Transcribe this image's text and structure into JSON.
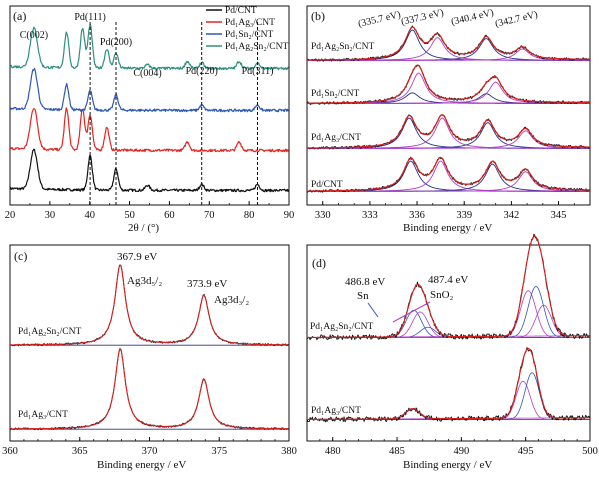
{
  "colors": {
    "black": "#111111",
    "red": "#e8231f",
    "blue": "#2c57b8",
    "teal": "#2c8f80",
    "magenta": "#b040c8",
    "navy": "#27318a",
    "fit_red": "#d8201c"
  },
  "panels": [
    {
      "label": "(a)",
      "xlabel": "2θ / (°)",
      "ylabel": "",
      "xlim": [
        20,
        90
      ],
      "xticks": [
        "20",
        "30",
        "40",
        "50",
        "60",
        "70",
        "80",
        "90"
      ],
      "legend": [
        "Pd/CNT",
        "Pd₁Ag₃/CNT",
        "Pd₁Sn₂/CNT",
        "Pd₁Ag₂Sn₂/CNT"
      ],
      "peaks": [
        {
          "name": "C(002)",
          "x": 26.0
        },
        {
          "name": "Pd(111)",
          "x": 40.1
        },
        {
          "name": "Pd(200)",
          "x": 46.6
        },
        {
          "name": "C(004)",
          "x": 54.5
        },
        {
          "name": "Pd(220)",
          "x": 68.1
        },
        {
          "name": "Pd(311)",
          "x": 82.1
        }
      ]
    },
    {
      "label": "(b)",
      "xlabel": "Binding energy / eV",
      "ylabel": "",
      "xlim": [
        329,
        347
      ],
      "xticks": [
        "330",
        "333",
        "336",
        "339",
        "342",
        "345"
      ],
      "energies": [
        "(335.7 eV)",
        "(337.3 eV)",
        "(340.4 eV)",
        "(342.7 eV)"
      ],
      "samples": [
        "Pd₁Ag₂Sn₂/CNT",
        "Pd₁Sn₂/CNT",
        "Pd₁Ag₃/CNT",
        "Pd/CNT"
      ]
    },
    {
      "label": "(c)",
      "xlabel": "Binding energy / eV",
      "ylabel": "",
      "xlim": [
        360,
        380
      ],
      "xticks": [
        "360",
        "365",
        "370",
        "375",
        "380"
      ],
      "peaks": [
        {
          "energy": "367.9 eV",
          "name": "Ag3d₅/₂",
          "x": 367.9
        },
        {
          "energy": "373.9 eV",
          "name": "Ag3d₃/₂",
          "x": 373.9
        }
      ],
      "samples": [
        "Pd₁Ag₂Sn₂/CNT",
        "Pd₁Ag₃/CNT"
      ]
    },
    {
      "label": "(d)",
      "xlabel": "Binding energy / eV",
      "ylabel": "",
      "xlim": [
        478,
        500
      ],
      "xticks": [
        "480",
        "485",
        "490",
        "495",
        "500"
      ],
      "peaks": [
        {
          "energy": "486.8 eV",
          "name": "Sn",
          "x": 486.8
        },
        {
          "energy": "487.4 eV",
          "name": "SnO₂",
          "x": 487.4
        }
      ],
      "samples": [
        "Pd₁Ag₂Sn₂/CNT",
        "Pd₁Ag₃/CNT"
      ]
    }
  ],
  "chart_data": [
    {
      "type": "line",
      "title": "",
      "xlabel": "2θ / (°)",
      "ylabel": "",
      "xlim": [
        20,
        90
      ],
      "grid": false,
      "legend_position": "top-right",
      "series": [
        {
          "name": "Pd/CNT",
          "x": [
            26.0,
            40.1,
            46.6,
            54.5,
            68.1,
            82.1
          ],
          "y": [
            0.78,
            0.68,
            0.42,
            0.1,
            0.12,
            0.12
          ]
        },
        {
          "name": "Pd₁Ag₃/CNT",
          "x": [
            26.0,
            34.2,
            38.2,
            40.1,
            44.3,
            64.5,
            77.5
          ],
          "y": [
            0.82,
            0.82,
            0.82,
            0.7,
            0.45,
            0.17,
            0.17
          ]
        },
        {
          "name": "Pd₁Sn₂/CNT",
          "x": [
            26.0,
            34.2,
            40.1,
            46.6,
            68.1,
            82.1
          ],
          "y": [
            0.8,
            0.5,
            0.38,
            0.3,
            0.1,
            0.11
          ]
        },
        {
          "name": "Pd₁Ag₂Sn₂/CNT",
          "x": [
            26.0,
            34.2,
            38.2,
            40.1,
            44.3,
            46.6,
            54.5,
            64.5,
            68.1,
            77.5,
            82.1
          ],
          "y": [
            0.78,
            0.7,
            0.78,
            0.85,
            0.38,
            0.3,
            0.07,
            0.14,
            0.11,
            0.14,
            0.11
          ]
        }
      ]
    },
    {
      "type": "line",
      "title": "",
      "xlabel": "Binding energy / eV",
      "ylabel": "",
      "xlim": [
        329,
        347
      ],
      "grid": false,
      "fit_peaks_eV": [
        335.7,
        337.3,
        340.4,
        342.7
      ],
      "series": [
        {
          "name": "Pd₁Ag₂Sn₂/CNT",
          "x": [
            335.7,
            337.3,
            340.4,
            342.7
          ],
          "y": [
            1.0,
            0.75,
            0.72,
            0.38
          ]
        },
        {
          "name": "Pd₁Sn₂/CNT",
          "x": [
            335.7,
            336.1,
            340.4,
            341.0
          ],
          "y": [
            0.35,
            1.0,
            0.32,
            0.7
          ]
        },
        {
          "name": "Pd₁Ag₃/CNT",
          "x": [
            335.5,
            337.6,
            340.5,
            342.9
          ],
          "y": [
            1.0,
            1.0,
            0.85,
            0.58
          ]
        },
        {
          "name": "Pd/CNT",
          "x": [
            335.6,
            337.5,
            340.8,
            342.9
          ],
          "y": [
            1.0,
            1.0,
            0.9,
            0.65
          ]
        }
      ]
    },
    {
      "type": "line",
      "title": "",
      "xlabel": "Binding energy / eV",
      "ylabel": "",
      "xlim": [
        360,
        380
      ],
      "grid": false,
      "series": [
        {
          "name": "Pd₁Ag₂Sn₂/CNT",
          "x": [
            367.9,
            373.9
          ],
          "y": [
            1.0,
            0.62
          ]
        },
        {
          "name": "Pd₁Ag₃/CNT",
          "x": [
            367.9,
            373.9
          ],
          "y": [
            1.0,
            0.62
          ]
        }
      ]
    },
    {
      "type": "line",
      "title": "",
      "xlabel": "Binding energy / eV",
      "ylabel": "",
      "xlim": [
        478,
        500
      ],
      "grid": false,
      "series": [
        {
          "name": "Pd₁Ag₂Sn₂/CNT",
          "x": [
            486.3,
            486.8,
            487.4,
            495.2,
            495.8,
            496.4
          ],
          "y": [
            0.55,
            0.55,
            0.55,
            1.0,
            1.0,
            1.0
          ]
        },
        {
          "name": "Pd₁Ag₃/CNT",
          "x": [
            486.2,
            494.8,
            495.5
          ],
          "y": [
            0.18,
            0.72,
            0.72
          ]
        }
      ]
    }
  ]
}
